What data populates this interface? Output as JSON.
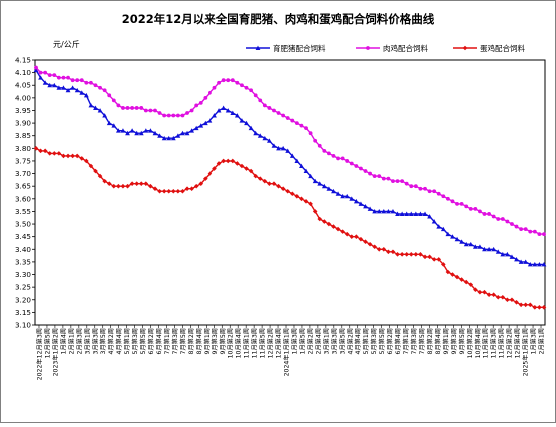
{
  "chart_data": {
    "type": "line",
    "title": "2022年12月以来全国育肥猪、肉鸡和蛋鸡配合饲料价格曲线",
    "ylabel": "元/公斤",
    "xlabel": "",
    "ylim": [
      3.1,
      4.15
    ],
    "yticks": [
      "4.15",
      "4.10",
      "4.05",
      "4.00",
      "3.95",
      "3.90",
      "3.85",
      "3.80",
      "3.75",
      "3.70",
      "3.65",
      "3.60",
      "3.55",
      "3.50",
      "3.45",
      "3.40",
      "3.35",
      "3.30",
      "3.25",
      "3.20",
      "3.15",
      "3.10"
    ],
    "grid": true,
    "legend_position": "top-right",
    "x_labels": [
      "2022年12月第3周",
      "12月第5周",
      "2023年1月第2周",
      "1月第4周",
      "2月第1周",
      "2月第3周",
      "3月第1周",
      "3月第3周",
      "3月第5周",
      "4月第2周",
      "4月第4周",
      "5月第1周",
      "5月第3周",
      "5月第5周",
      "6月第2周",
      "6月第4周",
      "7月第1周",
      "7月第3周",
      "7月第5周",
      "8月第2周",
      "8月第4周",
      "9月第1周",
      "9月第3周",
      "9月第5周",
      "10月第2周",
      "10月第4周",
      "11月第1周",
      "11月第3周",
      "11月第5周",
      "12月第2周",
      "12月第4周",
      "2024年1月第1周",
      "1月第3周",
      "1月第5周",
      "2月第2周",
      "2月第4周",
      "3月第1周",
      "3月第3周",
      "3月第5周",
      "4月第2周",
      "4月第4周",
      "5月第1周",
      "5月第3周",
      "5月第5周",
      "6月第2周",
      "6月第4周",
      "7月第1周",
      "7月第3周",
      "7月第5周",
      "8月第2周",
      "8月第4周",
      "9月第1周",
      "9月第3周",
      "9月第5周",
      "10月第2周",
      "10月第4周",
      "11月第1周",
      "11月第3周",
      "11月第5周",
      "12月第2周",
      "12月第4周",
      "2025年1月第1周",
      "1月第3周",
      "2月第1周"
    ],
    "series": [
      {
        "name": "育肥猪配合饲料",
        "color": "#1010d8",
        "marker": "triangle",
        "values": [
          4.11,
          4.08,
          4.06,
          4.05,
          4.05,
          4.04,
          4.04,
          4.03,
          4.04,
          4.03,
          4.02,
          4.01,
          3.97,
          3.96,
          3.95,
          3.93,
          3.9,
          3.89,
          3.87,
          3.87,
          3.86,
          3.87,
          3.86,
          3.86,
          3.87,
          3.87,
          3.86,
          3.85,
          3.84,
          3.84,
          3.84,
          3.85,
          3.86,
          3.86,
          3.87,
          3.88,
          3.89,
          3.9,
          3.91,
          3.93,
          3.95,
          3.96,
          3.95,
          3.94,
          3.93,
          3.91,
          3.9,
          3.88,
          3.86,
          3.85,
          3.84,
          3.83,
          3.81,
          3.8,
          3.8,
          3.79,
          3.77,
          3.75,
          3.73,
          3.71,
          3.69,
          3.67,
          3.66,
          3.65,
          3.64,
          3.63,
          3.62,
          3.61,
          3.61,
          3.6,
          3.59,
          3.58,
          3.57,
          3.56,
          3.55,
          3.55,
          3.55,
          3.55,
          3.55,
          3.54,
          3.54,
          3.54,
          3.54,
          3.54,
          3.54,
          3.54,
          3.53,
          3.51,
          3.49,
          3.48,
          3.46,
          3.45,
          3.44,
          3.43,
          3.42,
          3.42,
          3.41,
          3.41,
          3.4,
          3.4,
          3.4,
          3.39,
          3.38,
          3.38,
          3.37,
          3.36,
          3.35,
          3.35,
          3.34,
          3.34,
          3.34,
          3.34
        ]
      },
      {
        "name": "肉鸡配合饲料",
        "color": "#e010e0",
        "marker": "circle",
        "values": [
          4.12,
          4.1,
          4.1,
          4.09,
          4.09,
          4.08,
          4.08,
          4.08,
          4.07,
          4.07,
          4.07,
          4.06,
          4.06,
          4.05,
          4.04,
          4.03,
          4.01,
          3.99,
          3.97,
          3.96,
          3.96,
          3.96,
          3.96,
          3.96,
          3.95,
          3.95,
          3.95,
          3.94,
          3.93,
          3.93,
          3.93,
          3.93,
          3.93,
          3.94,
          3.95,
          3.97,
          3.98,
          4.0,
          4.02,
          4.04,
          4.06,
          4.07,
          4.07,
          4.07,
          4.06,
          4.05,
          4.04,
          4.03,
          4.01,
          3.99,
          3.97,
          3.96,
          3.95,
          3.94,
          3.93,
          3.92,
          3.91,
          3.9,
          3.89,
          3.88,
          3.86,
          3.83,
          3.81,
          3.79,
          3.78,
          3.77,
          3.76,
          3.76,
          3.75,
          3.74,
          3.73,
          3.72,
          3.71,
          3.7,
          3.69,
          3.69,
          3.68,
          3.68,
          3.67,
          3.67,
          3.67,
          3.66,
          3.65,
          3.65,
          3.64,
          3.64,
          3.63,
          3.63,
          3.62,
          3.61,
          3.6,
          3.59,
          3.58,
          3.58,
          3.57,
          3.56,
          3.56,
          3.55,
          3.54,
          3.54,
          3.53,
          3.52,
          3.52,
          3.51,
          3.5,
          3.49,
          3.48,
          3.48,
          3.47,
          3.47,
          3.46,
          3.46
        ]
      },
      {
        "name": "蛋鸡配合饲料",
        "color": "#e01010",
        "marker": "diamond",
        "values": [
          3.8,
          3.79,
          3.79,
          3.78,
          3.78,
          3.78,
          3.77,
          3.77,
          3.77,
          3.77,
          3.76,
          3.75,
          3.73,
          3.71,
          3.69,
          3.67,
          3.66,
          3.65,
          3.65,
          3.65,
          3.65,
          3.66,
          3.66,
          3.66,
          3.66,
          3.65,
          3.64,
          3.63,
          3.63,
          3.63,
          3.63,
          3.63,
          3.63,
          3.64,
          3.64,
          3.65,
          3.66,
          3.68,
          3.7,
          3.72,
          3.74,
          3.75,
          3.75,
          3.75,
          3.74,
          3.73,
          3.72,
          3.71,
          3.69,
          3.68,
          3.67,
          3.66,
          3.66,
          3.65,
          3.64,
          3.63,
          3.62,
          3.61,
          3.6,
          3.59,
          3.58,
          3.55,
          3.52,
          3.51,
          3.5,
          3.49,
          3.48,
          3.47,
          3.46,
          3.45,
          3.45,
          3.44,
          3.43,
          3.42,
          3.41,
          3.4,
          3.4,
          3.39,
          3.39,
          3.38,
          3.38,
          3.38,
          3.38,
          3.38,
          3.38,
          3.37,
          3.37,
          3.36,
          3.36,
          3.34,
          3.31,
          3.3,
          3.29,
          3.28,
          3.27,
          3.26,
          3.24,
          3.23,
          3.23,
          3.22,
          3.22,
          3.21,
          3.21,
          3.2,
          3.2,
          3.19,
          3.18,
          3.18,
          3.18,
          3.17,
          3.17,
          3.17
        ]
      }
    ]
  }
}
